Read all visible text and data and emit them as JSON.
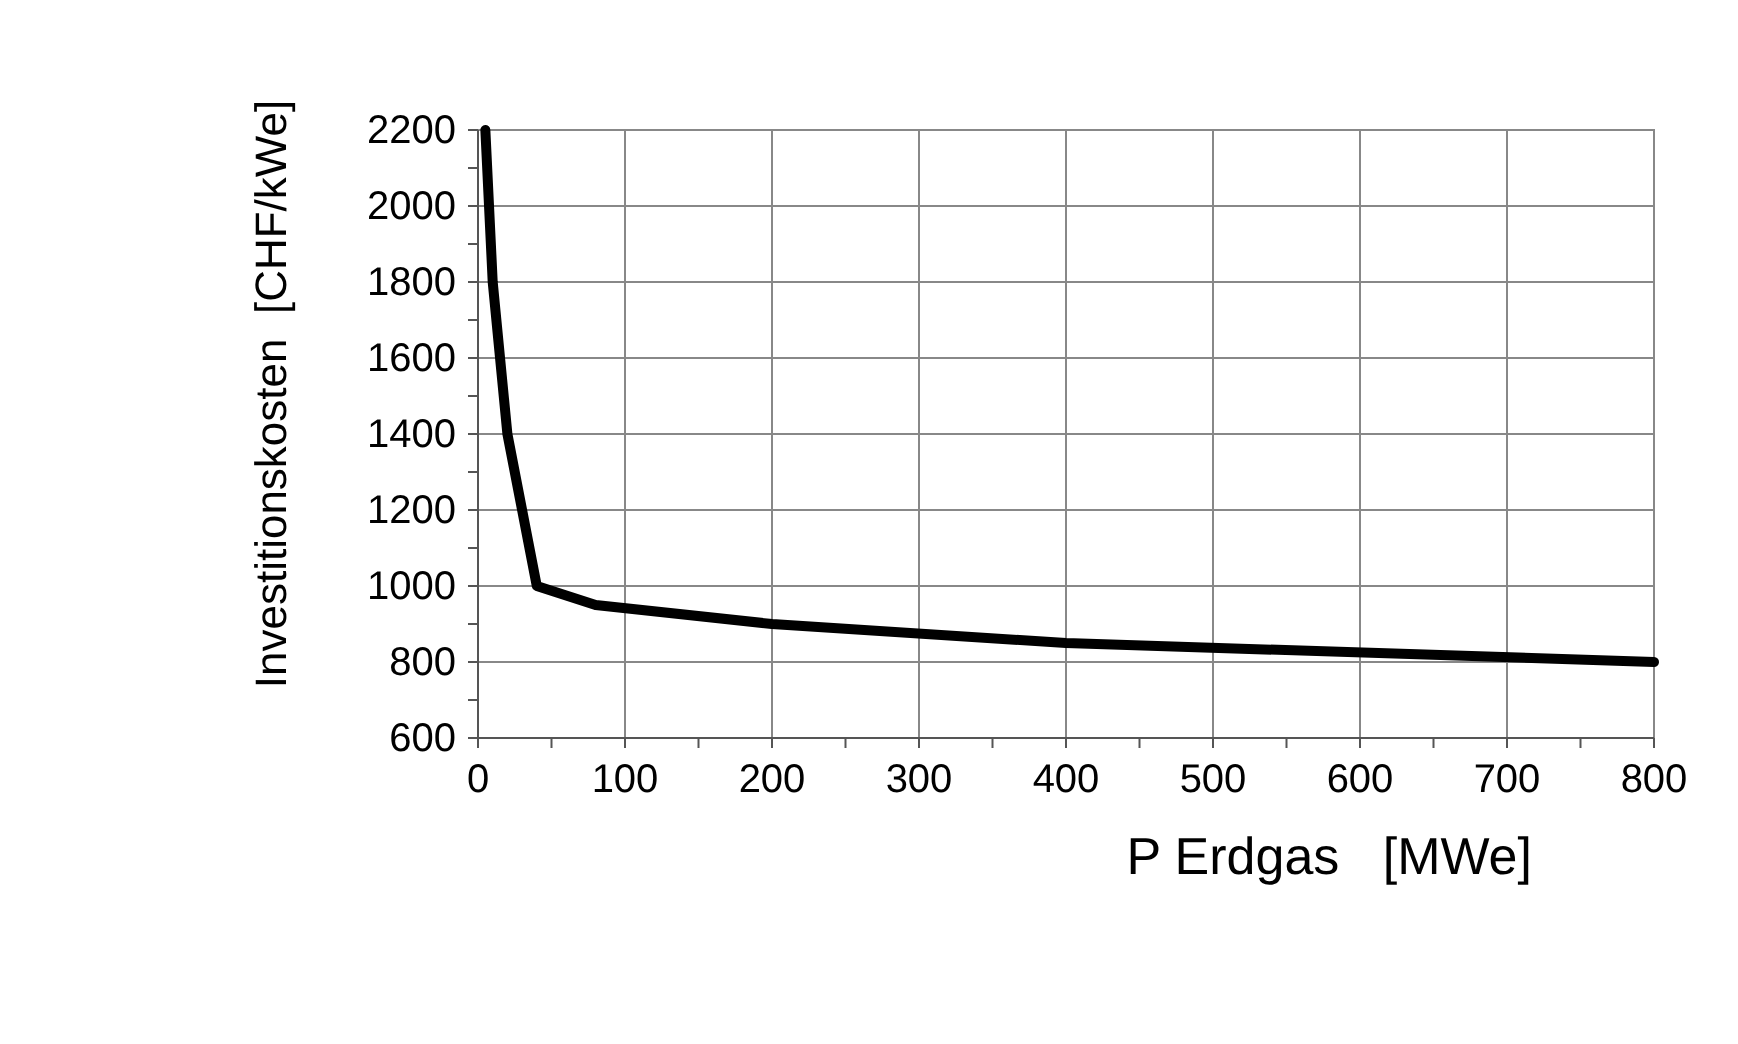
{
  "chart_data": {
    "type": "line",
    "xlabel": "P Erdgas   [MWe]",
    "ylabel": "Investitionskosten  [CHF/kWe]",
    "series": [
      {
        "color": "#000000",
        "x": [
          5,
          10,
          20,
          40,
          80,
          200,
          400,
          800
        ],
        "values": [
          2200,
          1800,
          1400,
          1000,
          950,
          900,
          850,
          800
        ]
      }
    ],
    "xlim": [
      0,
      800
    ],
    "ylim": [
      600,
      2200
    ],
    "xticks": [
      0,
      {
        "value": 50,
        "label": null
      },
      100,
      {
        "value": 150,
        "label": null
      },
      200,
      {
        "value": 250,
        "label": null
      },
      300,
      {
        "value": 350,
        "label": null
      },
      400,
      {
        "value": 450,
        "label": null
      },
      500,
      {
        "value": 550,
        "label": null
      },
      600,
      {
        "value": 650,
        "label": null
      },
      700,
      {
        "value": 750,
        "label": null
      },
      800
    ],
    "yticks": [
      600,
      {
        "value": 700,
        "label": null
      },
      800,
      {
        "value": 900,
        "label": null
      },
      1000,
      {
        "value": 1100,
        "label": null
      },
      1200,
      {
        "value": 1300,
        "label": null
      },
      1400,
      {
        "value": 1500,
        "label": null
      },
      1600,
      {
        "value": 1700,
        "label": null
      },
      1800,
      {
        "value": 1900,
        "label": null
      },
      2000,
      {
        "value": 2100,
        "label": null
      },
      2200
    ],
    "grid": true,
    "marker": "none",
    "line_style": "solid"
  }
}
